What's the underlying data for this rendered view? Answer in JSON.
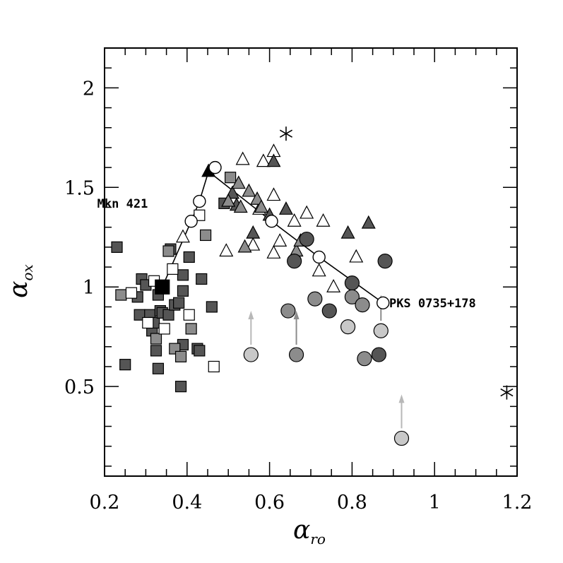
{
  "chart_data": {
    "type": "scatter",
    "title": "",
    "xlabel": "α",
    "xlabel_sub": "ro",
    "ylabel": "α",
    "ylabel_sub": "ox",
    "xlim": [
      0.2,
      1.2
    ],
    "ylim": [
      0.05,
      2.2
    ],
    "x_ticks": [
      "0.2",
      "0.4",
      "0.6",
      "0.8",
      "1",
      "1.2"
    ],
    "y_ticks": [
      "0.5",
      "1",
      "1.5",
      "2"
    ],
    "grid": false,
    "colors": {
      "dark": "#555555",
      "mid": "#8c8c8c",
      "light": "#c8c8c8",
      "black": "#000000",
      "white": "#ffffff"
    },
    "annotations": [
      {
        "text": "Mkn 421",
        "x": 0.305,
        "y": 1.42
      },
      {
        "text": "PKS 0735+178",
        "x": 0.89,
        "y": 0.92
      }
    ],
    "series": [
      {
        "marker": "square",
        "fill": "dark",
        "points": [
          [
            0.23,
            1.2
          ],
          [
            0.25,
            0.61
          ],
          [
            0.28,
            0.95
          ],
          [
            0.285,
            0.86
          ],
          [
            0.29,
            1.04
          ],
          [
            0.3,
            1.01
          ],
          [
            0.31,
            0.86
          ],
          [
            0.315,
            0.78
          ],
          [
            0.32,
            0.82
          ],
          [
            0.325,
            0.68
          ],
          [
            0.33,
            0.96
          ],
          [
            0.33,
            0.59
          ],
          [
            0.335,
            0.88
          ],
          [
            0.34,
            0.87
          ],
          [
            0.355,
            0.86
          ],
          [
            0.36,
            1.19
          ],
          [
            0.37,
            0.91
          ],
          [
            0.38,
            0.92
          ],
          [
            0.385,
            0.5
          ],
          [
            0.39,
            0.98
          ],
          [
            0.39,
            0.71
          ],
          [
            0.39,
            1.06
          ],
          [
            0.405,
            1.15
          ],
          [
            0.425,
            0.69
          ],
          [
            0.43,
            0.68
          ],
          [
            0.435,
            1.04
          ],
          [
            0.46,
            0.9
          ],
          [
            0.49,
            1.42
          ]
        ]
      },
      {
        "marker": "square",
        "fill": "mid",
        "points": [
          [
            0.24,
            0.96
          ],
          [
            0.355,
            1.18
          ],
          [
            0.37,
            0.69
          ],
          [
            0.385,
            0.65
          ],
          [
            0.41,
            0.79
          ],
          [
            0.445,
            1.26
          ],
          [
            0.505,
            1.55
          ],
          [
            0.325,
            0.74
          ]
        ]
      },
      {
        "marker": "square",
        "fill": "white",
        "points": [
          [
            0.265,
            0.97
          ],
          [
            0.305,
            0.82
          ],
          [
            0.32,
            1.03
          ],
          [
            0.345,
            0.79
          ],
          [
            0.365,
            1.09
          ],
          [
            0.405,
            0.86
          ],
          [
            0.43,
            1.36
          ],
          [
            0.465,
            0.6
          ]
        ]
      },
      {
        "marker": "square",
        "fill": "black",
        "points": [
          [
            0.34,
            1.0
          ]
        ]
      },
      {
        "marker": "triangle",
        "fill": "white",
        "points": [
          [
            0.39,
            1.25
          ],
          [
            0.495,
            1.18
          ],
          [
            0.535,
            1.64
          ],
          [
            0.56,
            1.21
          ],
          [
            0.575,
            1.39
          ],
          [
            0.585,
            1.63
          ],
          [
            0.61,
            1.68
          ],
          [
            0.61,
            1.17
          ],
          [
            0.61,
            1.46
          ],
          [
            0.625,
            1.23
          ],
          [
            0.66,
            1.33
          ],
          [
            0.69,
            1.37
          ],
          [
            0.72,
            1.08
          ],
          [
            0.73,
            1.33
          ],
          [
            0.755,
            1.0
          ],
          [
            0.81,
            1.15
          ]
        ]
      },
      {
        "marker": "triangle",
        "fill": "dark",
        "points": [
          [
            0.51,
            1.47
          ],
          [
            0.52,
            1.41
          ],
          [
            0.56,
            1.27
          ],
          [
            0.6,
            1.36
          ],
          [
            0.61,
            1.63
          ],
          [
            0.64,
            1.39
          ],
          [
            0.79,
            1.27
          ],
          [
            0.84,
            1.32
          ]
        ]
      },
      {
        "marker": "triangle",
        "fill": "mid",
        "points": [
          [
            0.53,
            1.4
          ],
          [
            0.54,
            1.2
          ],
          [
            0.55,
            1.48
          ],
          [
            0.57,
            1.44
          ],
          [
            0.58,
            1.4
          ],
          [
            0.665,
            1.18
          ],
          [
            0.675,
            1.23
          ],
          [
            0.5,
            1.43
          ],
          [
            0.525,
            1.52
          ]
        ]
      },
      {
        "marker": "triangle",
        "fill": "black",
        "points": [
          [
            0.452,
            1.58
          ]
        ]
      },
      {
        "marker": "circle",
        "fill": "dark",
        "points": [
          [
            0.66,
            1.13
          ],
          [
            0.69,
            1.24
          ],
          [
            0.745,
            0.88
          ],
          [
            0.8,
            1.02
          ],
          [
            0.865,
            0.66
          ],
          [
            0.88,
            1.13
          ]
        ]
      },
      {
        "marker": "circle",
        "fill": "mid",
        "points": [
          [
            0.645,
            0.88
          ],
          [
            0.665,
            0.66
          ],
          [
            0.71,
            0.94
          ],
          [
            0.8,
            0.95
          ],
          [
            0.825,
            0.91
          ],
          [
            0.83,
            0.64
          ]
        ]
      },
      {
        "marker": "circle",
        "fill": "light",
        "points": [
          [
            0.555,
            0.66
          ],
          [
            0.79,
            0.8
          ],
          [
            0.87,
            0.78
          ],
          [
            0.92,
            0.24
          ]
        ]
      },
      {
        "marker": "star",
        "fill": "black",
        "points": [
          [
            0.64,
            1.77
          ],
          [
            1.175,
            0.47
          ]
        ]
      }
    ],
    "upper_limit_arrows": [
      {
        "x": 0.555,
        "y_from": 0.71,
        "y_to": 0.88,
        "fill": "light"
      },
      {
        "x": 0.665,
        "y_from": 0.71,
        "y_to": 0.88,
        "fill": "mid"
      },
      {
        "x": 0.87,
        "y_from": 0.83,
        "y_to": 0.96,
        "fill": "mid"
      },
      {
        "x": 0.92,
        "y_from": 0.29,
        "y_to": 0.46,
        "fill": "light"
      }
    ],
    "track_mkn421": [
      [
        0.34,
        1.0
      ],
      [
        0.41,
        1.33
      ],
      [
        0.43,
        1.43
      ],
      [
        0.452,
        1.58
      ],
      [
        0.468,
        1.6
      ]
    ],
    "track_pks0735": [
      [
        0.452,
        1.58
      ],
      [
        0.605,
        1.33
      ],
      [
        0.72,
        1.15
      ],
      [
        0.875,
        0.92
      ]
    ]
  }
}
